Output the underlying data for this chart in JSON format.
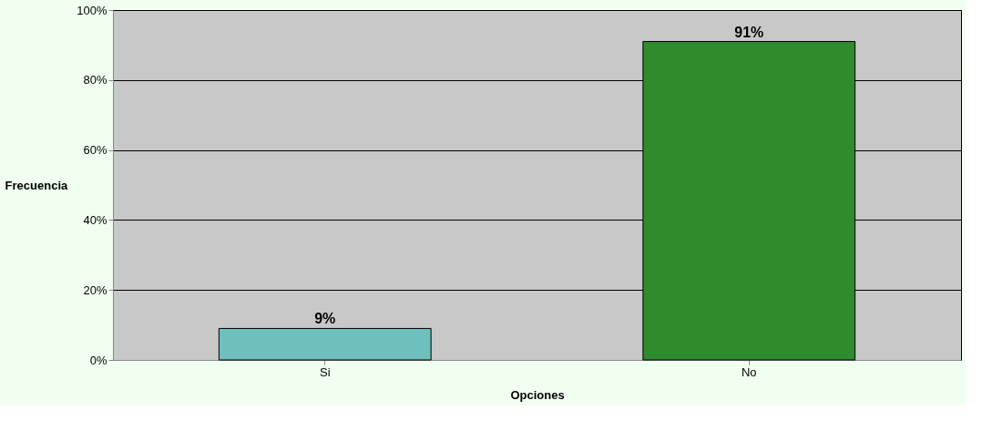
{
  "chart_data": {
    "type": "bar",
    "xlabel": "Opciones",
    "ylabel": "Frecuencia",
    "categories": [
      "Si",
      "No"
    ],
    "values": [
      9,
      91
    ],
    "colors": [
      "#6fbfbf",
      "#2e8b2e"
    ],
    "value_labels": [
      "9%",
      "91%"
    ],
    "ylim": [
      0,
      100
    ],
    "yticks": [
      {
        "value": 0,
        "label": "0%"
      },
      {
        "value": 20,
        "label": "20%"
      },
      {
        "value": 40,
        "label": "40%"
      },
      {
        "value": 60,
        "label": "60%"
      },
      {
        "value": 80,
        "label": "80%"
      },
      {
        "value": 100,
        "label": "100%"
      }
    ],
    "grid": "y"
  }
}
